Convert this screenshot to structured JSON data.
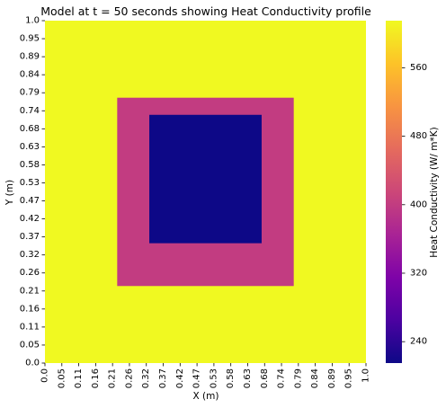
{
  "chart_data": {
    "type": "heatmap",
    "title": "Model at t = 50 seconds showing Heat Conductivity profile",
    "xlabel": "X (m)",
    "ylabel": "Y (m)",
    "x_ticks": [
      "0.0",
      "0.05",
      "0.11",
      "0.16",
      "0.21",
      "0.26",
      "0.32",
      "0.37",
      "0.42",
      "0.47",
      "0.53",
      "0.58",
      "0.63",
      "0.68",
      "0.74",
      "0.79",
      "0.84",
      "0.89",
      "0.95",
      "1.0"
    ],
    "y_ticks": [
      "1.0",
      "0.95",
      "0.89",
      "0.84",
      "0.79",
      "0.74",
      "0.68",
      "0.63",
      "0.58",
      "0.53",
      "0.47",
      "0.42",
      "0.37",
      "0.32",
      "0.26",
      "0.21",
      "0.16",
      "0.11",
      "0.05",
      "0.0"
    ],
    "xlim": [
      0,
      1
    ],
    "ylim": [
      0,
      1
    ],
    "colormap": "plasma",
    "colorbar": {
      "label": "Heat Conductivity (W/ m*K)",
      "ticks": [
        "240",
        "320",
        "400",
        "480",
        "560"
      ],
      "tick_values": [
        240,
        320,
        400,
        480,
        560
      ],
      "range": [
        215,
        615
      ]
    },
    "regions": [
      {
        "region": "outer",
        "x": [
          0,
          1
        ],
        "y": [
          0,
          1
        ],
        "value": 615
      },
      {
        "region": "middle",
        "x": [
          0.225,
          0.775
        ],
        "y": [
          0.225,
          0.775
        ],
        "value": 400
      },
      {
        "region": "inner",
        "x": [
          0.325,
          0.675
        ],
        "y": [
          0.35,
          0.725
        ],
        "value": 215
      }
    ]
  }
}
